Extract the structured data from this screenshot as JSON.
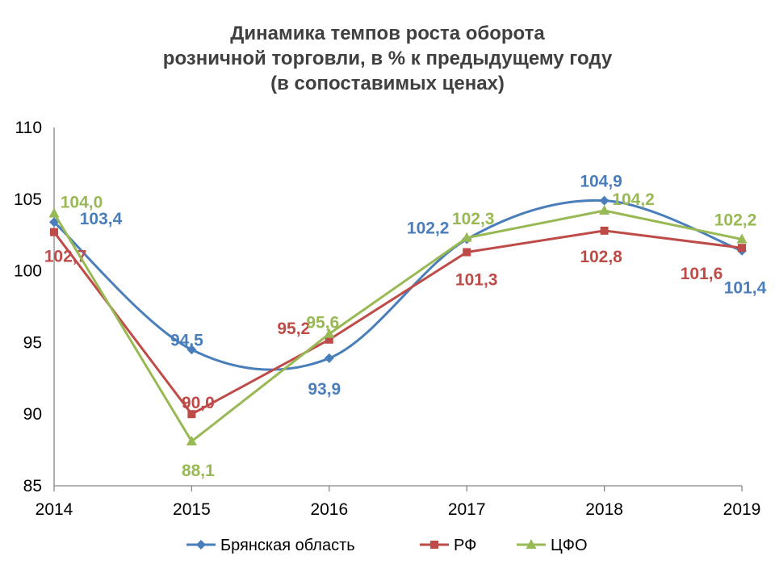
{
  "chart_data": {
    "type": "line",
    "title": [
      "Динамика темпов роста оборота",
      "розничной торговли, в % к предыдущему году",
      "(в сопоставимых ценах)"
    ],
    "x": [
      "2014",
      "2015",
      "2016",
      "2017",
      "2018",
      "2019"
    ],
    "ylim": [
      85,
      110
    ],
    "yticks": [
      "85",
      "90",
      "95",
      "100",
      "105",
      "110"
    ],
    "grid": false,
    "legend_position": "bottom",
    "series": [
      {
        "name": "Брянская область",
        "color": "#4a7ebb",
        "marker": "diamond",
        "smooth": true,
        "values": [
          103.4,
          94.5,
          93.9,
          102.2,
          104.9,
          101.4
        ],
        "labels": [
          "103,4",
          "94,5",
          "93,9",
          "102,2",
          "104,9",
          "101,4"
        ]
      },
      {
        "name": "РФ",
        "color": "#be4b48",
        "marker": "square",
        "smooth": false,
        "values": [
          102.7,
          90.0,
          95.2,
          101.3,
          102.8,
          101.6
        ],
        "labels": [
          "102,7",
          "90,0",
          "95,2",
          "101,3",
          "102,8",
          "101,6"
        ]
      },
      {
        "name": "ЦФО",
        "color": "#98b954",
        "marker": "triangle",
        "smooth": false,
        "values": [
          104.0,
          88.1,
          95.6,
          102.3,
          104.2,
          102.2
        ],
        "labels": [
          "104,0",
          "88,1",
          "95,6",
          "102,3",
          "104,2",
          "102,2"
        ]
      }
    ]
  }
}
